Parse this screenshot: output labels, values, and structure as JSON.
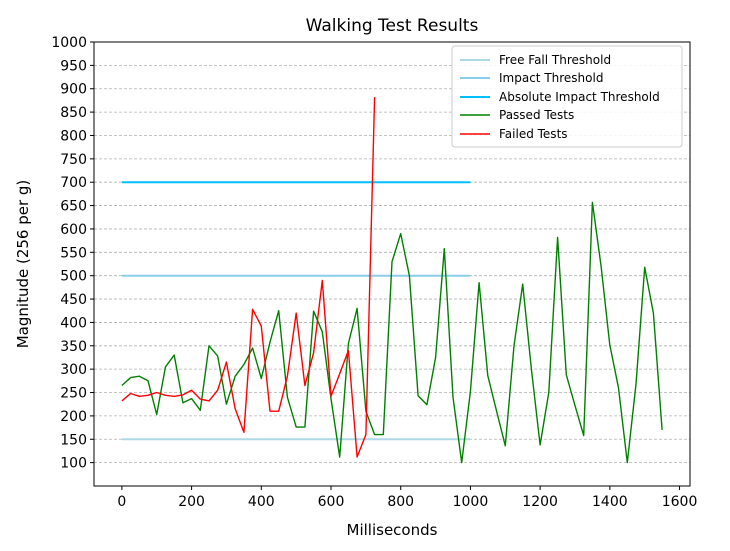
{
  "chart_data": {
    "type": "line",
    "title": "Walking Test Results",
    "xlabel": "Milliseconds",
    "ylabel": "Magnitude (256 per g)",
    "xlim": [
      -80,
      1630
    ],
    "ylim": [
      50,
      1000
    ],
    "xticks": [
      0,
      200,
      400,
      600,
      800,
      1000,
      1200,
      1400,
      1600
    ],
    "yticks": [
      100,
      150,
      200,
      250,
      300,
      350,
      400,
      450,
      500,
      550,
      600,
      650,
      700,
      750,
      800,
      850,
      900,
      950,
      1000
    ],
    "grid": "horizontal dashed",
    "legend_position": "top-right",
    "series": [
      {
        "name": "Free Fall Threshold",
        "color": "#add8e6",
        "x": [
          0,
          1000
        ],
        "y": [
          150,
          150
        ]
      },
      {
        "name": "Impact Threshold",
        "color": "#87ceeb",
        "x": [
          0,
          1000
        ],
        "y": [
          500,
          500
        ]
      },
      {
        "name": "Absolute Impact Threshold",
        "color": "#00bfff",
        "x": [
          0,
          1000
        ],
        "y": [
          700,
          700
        ]
      },
      {
        "name": "Passed Tests",
        "color": "#008000",
        "x": [
          0,
          25,
          50,
          75,
          100,
          125,
          150,
          175,
          200,
          225,
          250,
          275,
          300,
          325,
          350,
          375,
          400,
          425,
          450,
          475,
          500,
          525,
          550,
          575,
          600,
          625,
          650,
          675,
          700,
          725,
          750,
          775,
          800,
          825,
          850,
          875,
          900,
          925,
          950,
          975,
          1000,
          1025,
          1050,
          1075,
          1100,
          1125,
          1150,
          1175,
          1200,
          1225,
          1250,
          1275,
          1300,
          1325,
          1350,
          1375,
          1400,
          1425,
          1450,
          1475,
          1500,
          1525,
          1550
        ],
        "y": [
          265,
          282,
          285,
          275,
          203,
          305,
          330,
          228,
          237,
          212,
          350,
          328,
          225,
          285,
          310,
          345,
          280,
          358,
          425,
          240,
          176,
          176,
          424,
          380,
          237,
          112,
          355,
          430,
          210,
          160,
          160,
          530,
          590,
          500,
          243,
          224,
          325,
          558,
          240,
          100,
          252,
          485,
          286,
          210,
          136,
          350,
          482,
          300,
          138,
          250,
          582,
          288,
          222,
          158,
          657,
          520,
          352,
          260,
          100,
          268,
          518,
          420,
          170
        ]
      },
      {
        "name": "Failed Tests",
        "color": "#ff0000",
        "x": [
          0,
          25,
          50,
          75,
          100,
          125,
          150,
          175,
          200,
          225,
          250,
          275,
          300,
          325,
          350,
          375,
          400,
          425,
          450,
          475,
          500,
          525,
          550,
          575,
          600,
          625,
          650,
          675,
          700,
          725
        ],
        "y": [
          232,
          248,
          242,
          244,
          250,
          244,
          242,
          245,
          255,
          236,
          232,
          255,
          315,
          215,
          165,
          428,
          392,
          210,
          210,
          285,
          420,
          265,
          335,
          490,
          242,
          290,
          340,
          112,
          160,
          882
        ]
      }
    ]
  }
}
